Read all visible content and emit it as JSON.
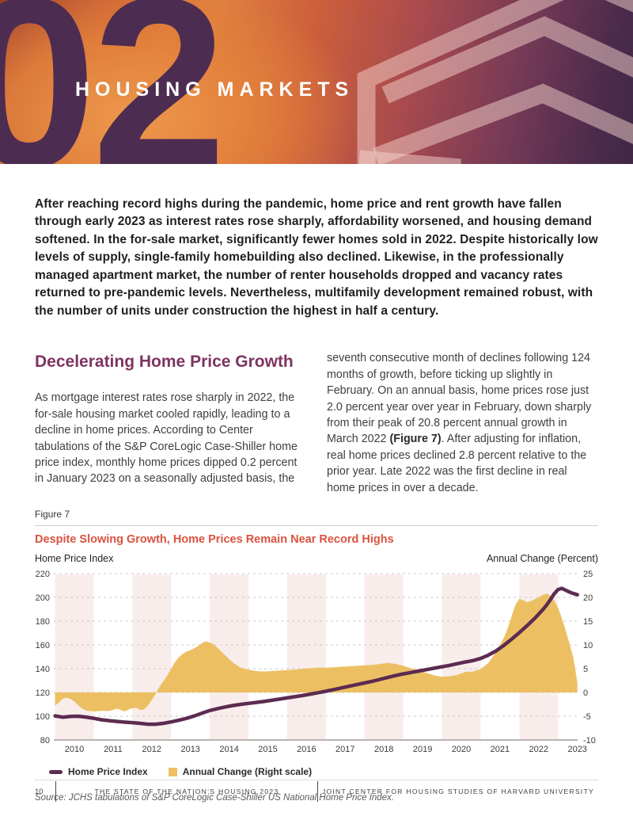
{
  "banner": {
    "number": "02",
    "title": "HOUSING MARKETS"
  },
  "intro": "After reaching record highs during the pandemic, home price and rent growth have fallen through early 2023 as interest rates rose sharply, affordability worsened, and housing demand softened. In the for-sale market, significantly fewer homes sold in 2022. Despite historically low levels of supply, single-family homebuilding also declined. Likewise, in the professionally managed apartment market, the number of renter households dropped and vacancy rates returned to pre-pandemic levels. Nevertheless, multifamily development remained robust, with the number of units under construction the highest in half a century.",
  "section": {
    "heading": "Decelerating Home Price Growth",
    "col_left": "As mortgage interest rates rose sharply in 2022, the for-sale housing market cooled rapidly, leading to a decline in home prices. According to Center tabulations of the S&P CoreLogic Case-Shiller home price index, monthly home prices dipped 0.2 percent in January 2023 on a seasonally adjusted basis, the",
    "col_right_pre": "seventh consecutive month of declines following 124 months of growth, before ticking up slightly in February. On an annual basis, home prices rose just 2.0 percent year over year in February, down sharply from their peak of 20.8 percent annual growth in March 2022 ",
    "col_right_bold": "(Figure 7)",
    "col_right_post": ". After adjusting for inflation, real home prices declined 2.8 percent relative to the prior year. Late 2022 was the first decline in real home prices in over a decade."
  },
  "figure": {
    "label": "Figure 7",
    "title": "Despite Slowing Growth, Home Prices Remain Near Record Highs",
    "left_axis_title": "Home Price Index",
    "right_axis_title": "Annual Change (Percent)",
    "legend": [
      {
        "label": "Home Price Index",
        "color": "#5c2b50",
        "swatch": "line"
      },
      {
        "label": "Annual Change (Right scale)",
        "color": "#ecc062",
        "swatch": "square"
      }
    ],
    "source": "Source: JCHS tabulations of S&P CoreLogic Case-Shiller US National Home Price Index."
  },
  "chart_data": {
    "type": "line",
    "title": "Despite Slowing Growth, Home Prices Remain Near Record Highs",
    "grid": "horizontal-dashed",
    "plot_bands_years": [
      2010,
      2012,
      2014,
      2016,
      2018,
      2020,
      2022
    ],
    "x_axis": {
      "label_years": [
        2010,
        2011,
        2012,
        2013,
        2014,
        2015,
        2016,
        2017,
        2018,
        2019,
        2020,
        2021,
        2022,
        2023
      ],
      "range": [
        2009.5,
        2023.0
      ]
    },
    "left_axis": {
      "title": "Home Price Index",
      "ticks": [
        220,
        200,
        180,
        160,
        140,
        120,
        100,
        80
      ],
      "range": [
        80,
        220
      ]
    },
    "right_axis": {
      "title": "Annual Change (Percent)",
      "ticks": [
        25,
        20,
        15,
        10,
        5,
        0,
        -5,
        -10
      ],
      "range": [
        -10,
        25
      ]
    },
    "series": [
      {
        "name": "Home Price Index",
        "axis": "left",
        "type": "line",
        "color": "#5c2b50",
        "points": [
          [
            2009.5,
            100.3
          ],
          [
            2009.7,
            99.2
          ],
          [
            2009.9,
            99.8
          ],
          [
            2010.1,
            100.0
          ],
          [
            2010.3,
            99.3
          ],
          [
            2010.5,
            98.2
          ],
          [
            2010.7,
            97.0
          ],
          [
            2010.9,
            96.3
          ],
          [
            2011.1,
            95.6
          ],
          [
            2011.3,
            95.0
          ],
          [
            2011.5,
            94.6
          ],
          [
            2011.7,
            94.0
          ],
          [
            2011.9,
            93.3
          ],
          [
            2012.1,
            93.3
          ],
          [
            2012.3,
            94.0
          ],
          [
            2012.5,
            95.2
          ],
          [
            2012.7,
            96.6
          ],
          [
            2012.9,
            98.2
          ],
          [
            2013.1,
            100.2
          ],
          [
            2013.3,
            102.6
          ],
          [
            2013.5,
            104.8
          ],
          [
            2013.7,
            106.4
          ],
          [
            2013.9,
            107.8
          ],
          [
            2014.1,
            109.0
          ],
          [
            2014.3,
            110.0
          ],
          [
            2014.5,
            110.8
          ],
          [
            2014.7,
            111.6
          ],
          [
            2014.9,
            112.4
          ],
          [
            2015.1,
            113.4
          ],
          [
            2015.3,
            114.4
          ],
          [
            2015.5,
            115.4
          ],
          [
            2015.7,
            116.4
          ],
          [
            2015.9,
            117.4
          ],
          [
            2016.1,
            118.6
          ],
          [
            2016.3,
            119.8
          ],
          [
            2016.5,
            121.0
          ],
          [
            2016.7,
            122.4
          ],
          [
            2016.9,
            123.8
          ],
          [
            2017.1,
            125.2
          ],
          [
            2017.3,
            126.6
          ],
          [
            2017.5,
            128.0
          ],
          [
            2017.7,
            129.4
          ],
          [
            2017.9,
            131.0
          ],
          [
            2018.1,
            132.6
          ],
          [
            2018.3,
            134.2
          ],
          [
            2018.5,
            135.6
          ],
          [
            2018.7,
            136.8
          ],
          [
            2018.9,
            138.0
          ],
          [
            2019.1,
            139.2
          ],
          [
            2019.3,
            140.4
          ],
          [
            2019.5,
            141.6
          ],
          [
            2019.7,
            142.8
          ],
          [
            2019.9,
            144.2
          ],
          [
            2020.1,
            145.6
          ],
          [
            2020.3,
            146.8
          ],
          [
            2020.5,
            148.6
          ],
          [
            2020.7,
            151.4
          ],
          [
            2020.9,
            155.0
          ],
          [
            2021.1,
            159.6
          ],
          [
            2021.3,
            164.8
          ],
          [
            2021.5,
            170.4
          ],
          [
            2021.7,
            176.2
          ],
          [
            2021.9,
            182.4
          ],
          [
            2022.1,
            189.4
          ],
          [
            2022.2,
            193.4
          ],
          [
            2022.3,
            198.0
          ],
          [
            2022.4,
            203.0
          ],
          [
            2022.5,
            206.6
          ],
          [
            2022.6,
            207.6
          ],
          [
            2022.7,
            206.0
          ],
          [
            2022.8,
            204.4
          ],
          [
            2022.9,
            203.2
          ],
          [
            2023.0,
            202.2
          ]
        ]
      },
      {
        "name": "Annual Change (Right scale)",
        "axis": "right",
        "type": "area",
        "color": "#ecc062",
        "points": [
          [
            2009.5,
            -2.8
          ],
          [
            2009.6,
            -2.1
          ],
          [
            2009.7,
            -1.3
          ],
          [
            2009.8,
            -1.1
          ],
          [
            2009.9,
            -1.4
          ],
          [
            2010.0,
            -1.9
          ],
          [
            2010.1,
            -2.7
          ],
          [
            2010.2,
            -3.4
          ],
          [
            2010.3,
            -3.8
          ],
          [
            2010.5,
            -4.0
          ],
          [
            2010.7,
            -3.9
          ],
          [
            2010.9,
            -3.9
          ],
          [
            2011.0,
            -3.7
          ],
          [
            2011.1,
            -3.4
          ],
          [
            2011.2,
            -3.7
          ],
          [
            2011.3,
            -4.0
          ],
          [
            2011.45,
            -3.4
          ],
          [
            2011.6,
            -3.2
          ],
          [
            2011.7,
            -3.7
          ],
          [
            2011.8,
            -3.6
          ],
          [
            2011.9,
            -2.8
          ],
          [
            2012.0,
            -1.6
          ],
          [
            2012.1,
            -0.3
          ],
          [
            2012.2,
            1.2
          ],
          [
            2012.3,
            2.4
          ],
          [
            2012.4,
            3.6
          ],
          [
            2012.5,
            5.0
          ],
          [
            2012.6,
            6.4
          ],
          [
            2012.7,
            7.4
          ],
          [
            2012.8,
            8.1
          ],
          [
            2012.9,
            8.6
          ],
          [
            2013.0,
            8.9
          ],
          [
            2013.1,
            9.3
          ],
          [
            2013.2,
            9.8
          ],
          [
            2013.3,
            10.4
          ],
          [
            2013.4,
            10.8
          ],
          [
            2013.5,
            10.5
          ],
          [
            2013.6,
            10.1
          ],
          [
            2013.7,
            9.4
          ],
          [
            2013.8,
            8.6
          ],
          [
            2013.9,
            7.8
          ],
          [
            2014.0,
            7.0
          ],
          [
            2014.1,
            6.3
          ],
          [
            2014.2,
            5.7
          ],
          [
            2014.3,
            5.2
          ],
          [
            2014.5,
            4.8
          ],
          [
            2014.7,
            4.5
          ],
          [
            2014.9,
            4.4
          ],
          [
            2015.1,
            4.5
          ],
          [
            2015.3,
            4.6
          ],
          [
            2015.5,
            4.7
          ],
          [
            2015.7,
            4.8
          ],
          [
            2015.9,
            5.0
          ],
          [
            2016.1,
            5.1
          ],
          [
            2016.3,
            5.2
          ],
          [
            2016.5,
            5.2
          ],
          [
            2016.7,
            5.3
          ],
          [
            2016.9,
            5.4
          ],
          [
            2017.1,
            5.5
          ],
          [
            2017.3,
            5.6
          ],
          [
            2017.5,
            5.7
          ],
          [
            2017.7,
            5.8
          ],
          [
            2017.9,
            6.0
          ],
          [
            2018.1,
            6.2
          ],
          [
            2018.3,
            6.0
          ],
          [
            2018.5,
            5.6
          ],
          [
            2018.7,
            5.1
          ],
          [
            2018.9,
            4.6
          ],
          [
            2019.1,
            4.1
          ],
          [
            2019.3,
            3.6
          ],
          [
            2019.5,
            3.3
          ],
          [
            2019.7,
            3.4
          ],
          [
            2019.9,
            3.7
          ],
          [
            2020.1,
            4.3
          ],
          [
            2020.3,
            4.4
          ],
          [
            2020.5,
            4.9
          ],
          [
            2020.7,
            6.2
          ],
          [
            2020.9,
            8.5
          ],
          [
            2021.1,
            11.5
          ],
          [
            2021.2,
            13.5
          ],
          [
            2021.3,
            16.0
          ],
          [
            2021.4,
            18.5
          ],
          [
            2021.5,
            19.7
          ],
          [
            2021.6,
            19.4
          ],
          [
            2021.7,
            19.0
          ],
          [
            2021.8,
            19.2
          ],
          [
            2021.9,
            19.6
          ],
          [
            2022.0,
            20.0
          ],
          [
            2022.1,
            20.5
          ],
          [
            2022.2,
            20.8
          ],
          [
            2022.3,
            20.4
          ],
          [
            2022.4,
            19.4
          ],
          [
            2022.5,
            17.8
          ],
          [
            2022.6,
            15.6
          ],
          [
            2022.7,
            13.0
          ],
          [
            2022.8,
            10.2
          ],
          [
            2022.9,
            7.2
          ],
          [
            2023.0,
            2.0
          ]
        ]
      }
    ]
  },
  "footer": {
    "page": "10",
    "left": "THE STATE OF THE NATION’S HOUSING 2023",
    "right": "JOINT CENTER FOR HOUSING STUDIES OF HARVARD UNIVERSITY"
  },
  "colors": {
    "band": "#f9edeb",
    "grid": "#c9c9c9",
    "axis": "#b9b3b3",
    "tick_text": "#3c3c3c",
    "heading": "#7d3461",
    "figure_title": "#d9533f",
    "banner_number": "#4d2c52"
  }
}
